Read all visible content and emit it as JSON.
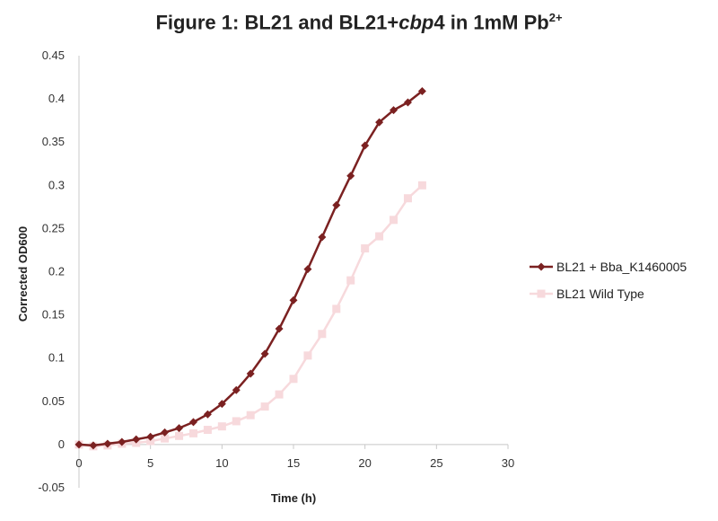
{
  "chart_data": {
    "type": "line",
    "title": {
      "prefix": "Figure 1: BL21 and BL21+",
      "italic": "cbp",
      "mid": "4 in 1mM Pb",
      "superscript": "2+"
    },
    "xlabel": "Time (h)",
    "ylabel": "Corrected OD600",
    "xlim": [
      0,
      30
    ],
    "ylim": [
      -0.05,
      0.45
    ],
    "x_ticks": [
      0,
      5,
      10,
      15,
      20,
      25,
      30
    ],
    "x_tick_labels": [
      "0",
      "5",
      "10",
      "15",
      "20",
      "25",
      "30"
    ],
    "y_ticks": [
      -0.05,
      0,
      0.05,
      0.1,
      0.15,
      0.2,
      0.25,
      0.3,
      0.35,
      0.4,
      0.45
    ],
    "y_tick_labels": [
      "-0.05",
      "0",
      "0.05",
      "0.1",
      "0.15",
      "0.2",
      "0.25",
      "0.3",
      "0.35",
      "0.4",
      "0.45"
    ],
    "grid": false,
    "legend_position": "right",
    "x": [
      0,
      1,
      2,
      3,
      4,
      5,
      6,
      7,
      8,
      9,
      10,
      11,
      12,
      13,
      14,
      15,
      16,
      17,
      18,
      19,
      20,
      21,
      22,
      23,
      24
    ],
    "series": [
      {
        "name": "BL21 + Bba_K1460005",
        "color": "#7b2121",
        "marker": "diamond",
        "values": [
          0,
          -0.001,
          0.001,
          0.003,
          0.006,
          0.009,
          0.014,
          0.019,
          0.026,
          0.035,
          0.047,
          0.063,
          0.082,
          0.105,
          0.134,
          0.167,
          0.203,
          0.24,
          0.277,
          0.311,
          0.346,
          0.373,
          0.387,
          0.396,
          0.409
        ]
      },
      {
        "name": "BL21 Wild Type",
        "color": "#f7d9dc",
        "marker": "square",
        "values": [
          0,
          -0.002,
          -0.001,
          0.001,
          0.002,
          0.004,
          0.007,
          0.01,
          0.013,
          0.017,
          0.021,
          0.027,
          0.034,
          0.044,
          0.058,
          0.076,
          0.103,
          0.128,
          0.157,
          0.19,
          0.227,
          0.241,
          0.26,
          0.285,
          0.3
        ]
      }
    ]
  }
}
